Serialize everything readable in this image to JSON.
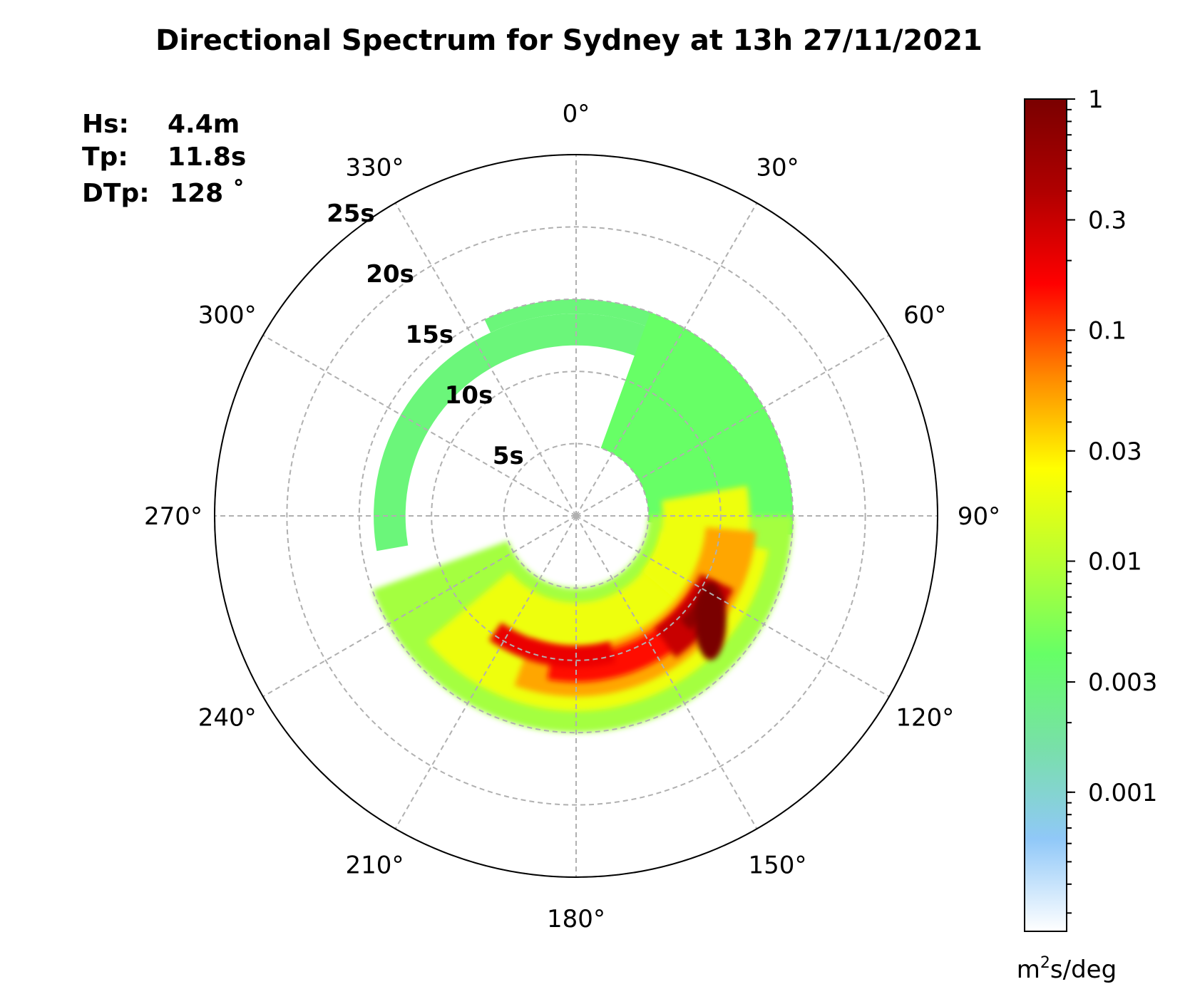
{
  "chart_data": {
    "type": "heatmap",
    "title": "Directional Spectrum for Sydney at 13h 27/11/2021",
    "stats": [
      {
        "label": "Hs:",
        "value": "4.4m"
      },
      {
        "label": "Tp:",
        "value": "11.8s"
      },
      {
        "label": "DTp:",
        "value": "128 ˚"
      }
    ],
    "angular_ticks": [
      "0°",
      "30°",
      "60°",
      "90°",
      "120°",
      "150°",
      "180°",
      "210°",
      "240°",
      "270°",
      "300°",
      "330°"
    ],
    "angular_tick_values": [
      0,
      30,
      60,
      90,
      120,
      150,
      180,
      210,
      240,
      270,
      300,
      330
    ],
    "radial_ticks": [
      "5s",
      "10s",
      "15s",
      "20s",
      "25s"
    ],
    "radial_tick_values": [
      5,
      10,
      15,
      20,
      25
    ],
    "radial_max": 25,
    "grid": true,
    "colorbar": {
      "scale": "log",
      "range": [
        0.00025,
        1
      ],
      "ticks": [
        "1",
        "0.3",
        "0.1",
        "0.03",
        "0.01",
        "0.003",
        "0.001"
      ],
      "tick_values": [
        1,
        0.3,
        0.1,
        0.03,
        0.01,
        0.003,
        0.001
      ],
      "units_base": "m",
      "units_sup": "2",
      "units_rest": "s/deg",
      "colors": [
        "#ffffff",
        "#90c8f8",
        "#78e0a8",
        "#66ff66",
        "#b8ff33",
        "#ffff00",
        "#ff8800",
        "#ff0000",
        "#b00000",
        "#7a0000"
      ]
    },
    "peak": {
      "direction_deg": 128,
      "period_s": 11.8,
      "value": 1
    },
    "spectrum_bands": [
      {
        "dir_start": 335,
        "dir_end": 430,
        "period_min": 14,
        "period_max": 15,
        "value": 0.003
      },
      {
        "dir_start": 260,
        "dir_end": 445,
        "period_min": 11.8,
        "period_max": 14,
        "value": 0.003
      },
      {
        "dir_start": 20,
        "dir_end": 95,
        "period_min": 5,
        "period_max": 15,
        "value": 0.004
      },
      {
        "dir_start": 90,
        "dir_end": 250,
        "period_min": 5,
        "period_max": 15,
        "value": 0.008
      },
      {
        "dir_start": 100,
        "dir_end": 230,
        "period_min": 6,
        "period_max": 13.5,
        "value": 0.02
      },
      {
        "dir_start": 80,
        "dir_end": 130,
        "period_min": 6,
        "period_max": 12,
        "value": 0.02
      },
      {
        "dir_start": 95,
        "dir_end": 200,
        "period_min": 9,
        "period_max": 12.5,
        "value": 0.05
      },
      {
        "dir_start": 120,
        "dir_end": 190,
        "period_min": 9.5,
        "period_max": 11.5,
        "value": 0.15
      },
      {
        "dir_start": 115,
        "dir_end": 145,
        "period_min": 9.5,
        "period_max": 12,
        "value": 0.3
      },
      {
        "dir_start": 122,
        "dir_end": 135,
        "period_min": 10.2,
        "period_max": 11.2,
        "value": 0.7
      },
      {
        "dir_start": 165,
        "dir_end": 215,
        "period_min": 9,
        "period_max": 10.5,
        "value": 0.2
      }
    ]
  }
}
